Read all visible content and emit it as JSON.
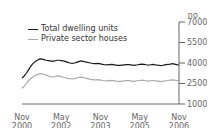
{
  "chart_data": {
    "type": "line",
    "ylabel": "no.",
    "categories": [
      "Nov\n2000",
      null,
      null,
      null,
      null,
      null,
      null,
      null,
      null,
      null,
      null,
      null,
      null,
      null,
      null,
      null,
      null,
      null,
      "May\n2002",
      null,
      null,
      null,
      null,
      null,
      null,
      null,
      null,
      null,
      null,
      null,
      null,
      null,
      null,
      null,
      null,
      null,
      "Nov\n2003",
      null,
      null,
      null,
      null,
      null,
      null,
      null,
      null,
      null,
      null,
      null,
      null,
      null,
      null,
      null,
      null,
      null,
      "May\n2005",
      null,
      null,
      null,
      null,
      null,
      null,
      null,
      null,
      null,
      null,
      null,
      null,
      null,
      null,
      null,
      null,
      null,
      "Nov\n2006"
    ],
    "series": [
      {
        "name": "Total dwelling units",
        "color": "#1a1a1a",
        "values": [
          2900,
          3050,
          3250,
          3500,
          3750,
          3950,
          4100,
          4200,
          4280,
          4300,
          4250,
          4200,
          4180,
          4150,
          4120,
          4150,
          4200,
          4200,
          4180,
          4150,
          4100,
          4050,
          4000,
          3980,
          4000,
          4050,
          4100,
          4150,
          4120,
          4080,
          4050,
          4020,
          3980,
          3950,
          3950,
          3970,
          3940,
          3900,
          3870,
          3860,
          3880,
          3900,
          3880,
          3850,
          3820,
          3820,
          3840,
          3860,
          3880,
          3880,
          3860,
          3830,
          3850,
          3870,
          3900,
          3920,
          3900,
          3870,
          3850,
          3870,
          3900,
          3870,
          3840,
          3820,
          3800,
          3850,
          3880,
          3900,
          3920,
          3950,
          3920,
          3880,
          3850
        ]
      },
      {
        "name": "Private sector houses",
        "color": "#aaaaaa",
        "values": [
          2150,
          2300,
          2500,
          2700,
          2850,
          2980,
          3080,
          3150,
          3200,
          3230,
          3180,
          3120,
          3060,
          3010,
          2970,
          3010,
          3060,
          3040,
          3000,
          2960,
          2920,
          2880,
          2850,
          2830,
          2860,
          2900,
          2940,
          2970,
          2940,
          2900,
          2860,
          2820,
          2790,
          2760,
          2760,
          2780,
          2750,
          2720,
          2700,
          2690,
          2710,
          2730,
          2710,
          2680,
          2660,
          2650,
          2670,
          2690,
          2710,
          2710,
          2690,
          2660,
          2680,
          2700,
          2720,
          2740,
          2720,
          2700,
          2680,
          2700,
          2720,
          2700,
          2680,
          2660,
          2640,
          2680,
          2700,
          2720,
          2740,
          2760,
          2740,
          2720,
          2700
        ]
      }
    ],
    "ylim": [
      1000,
      7000
    ],
    "yticks": [
      1000,
      2500,
      4000,
      5500,
      7000
    ],
    "grid": false,
    "legend": "upper left"
  }
}
